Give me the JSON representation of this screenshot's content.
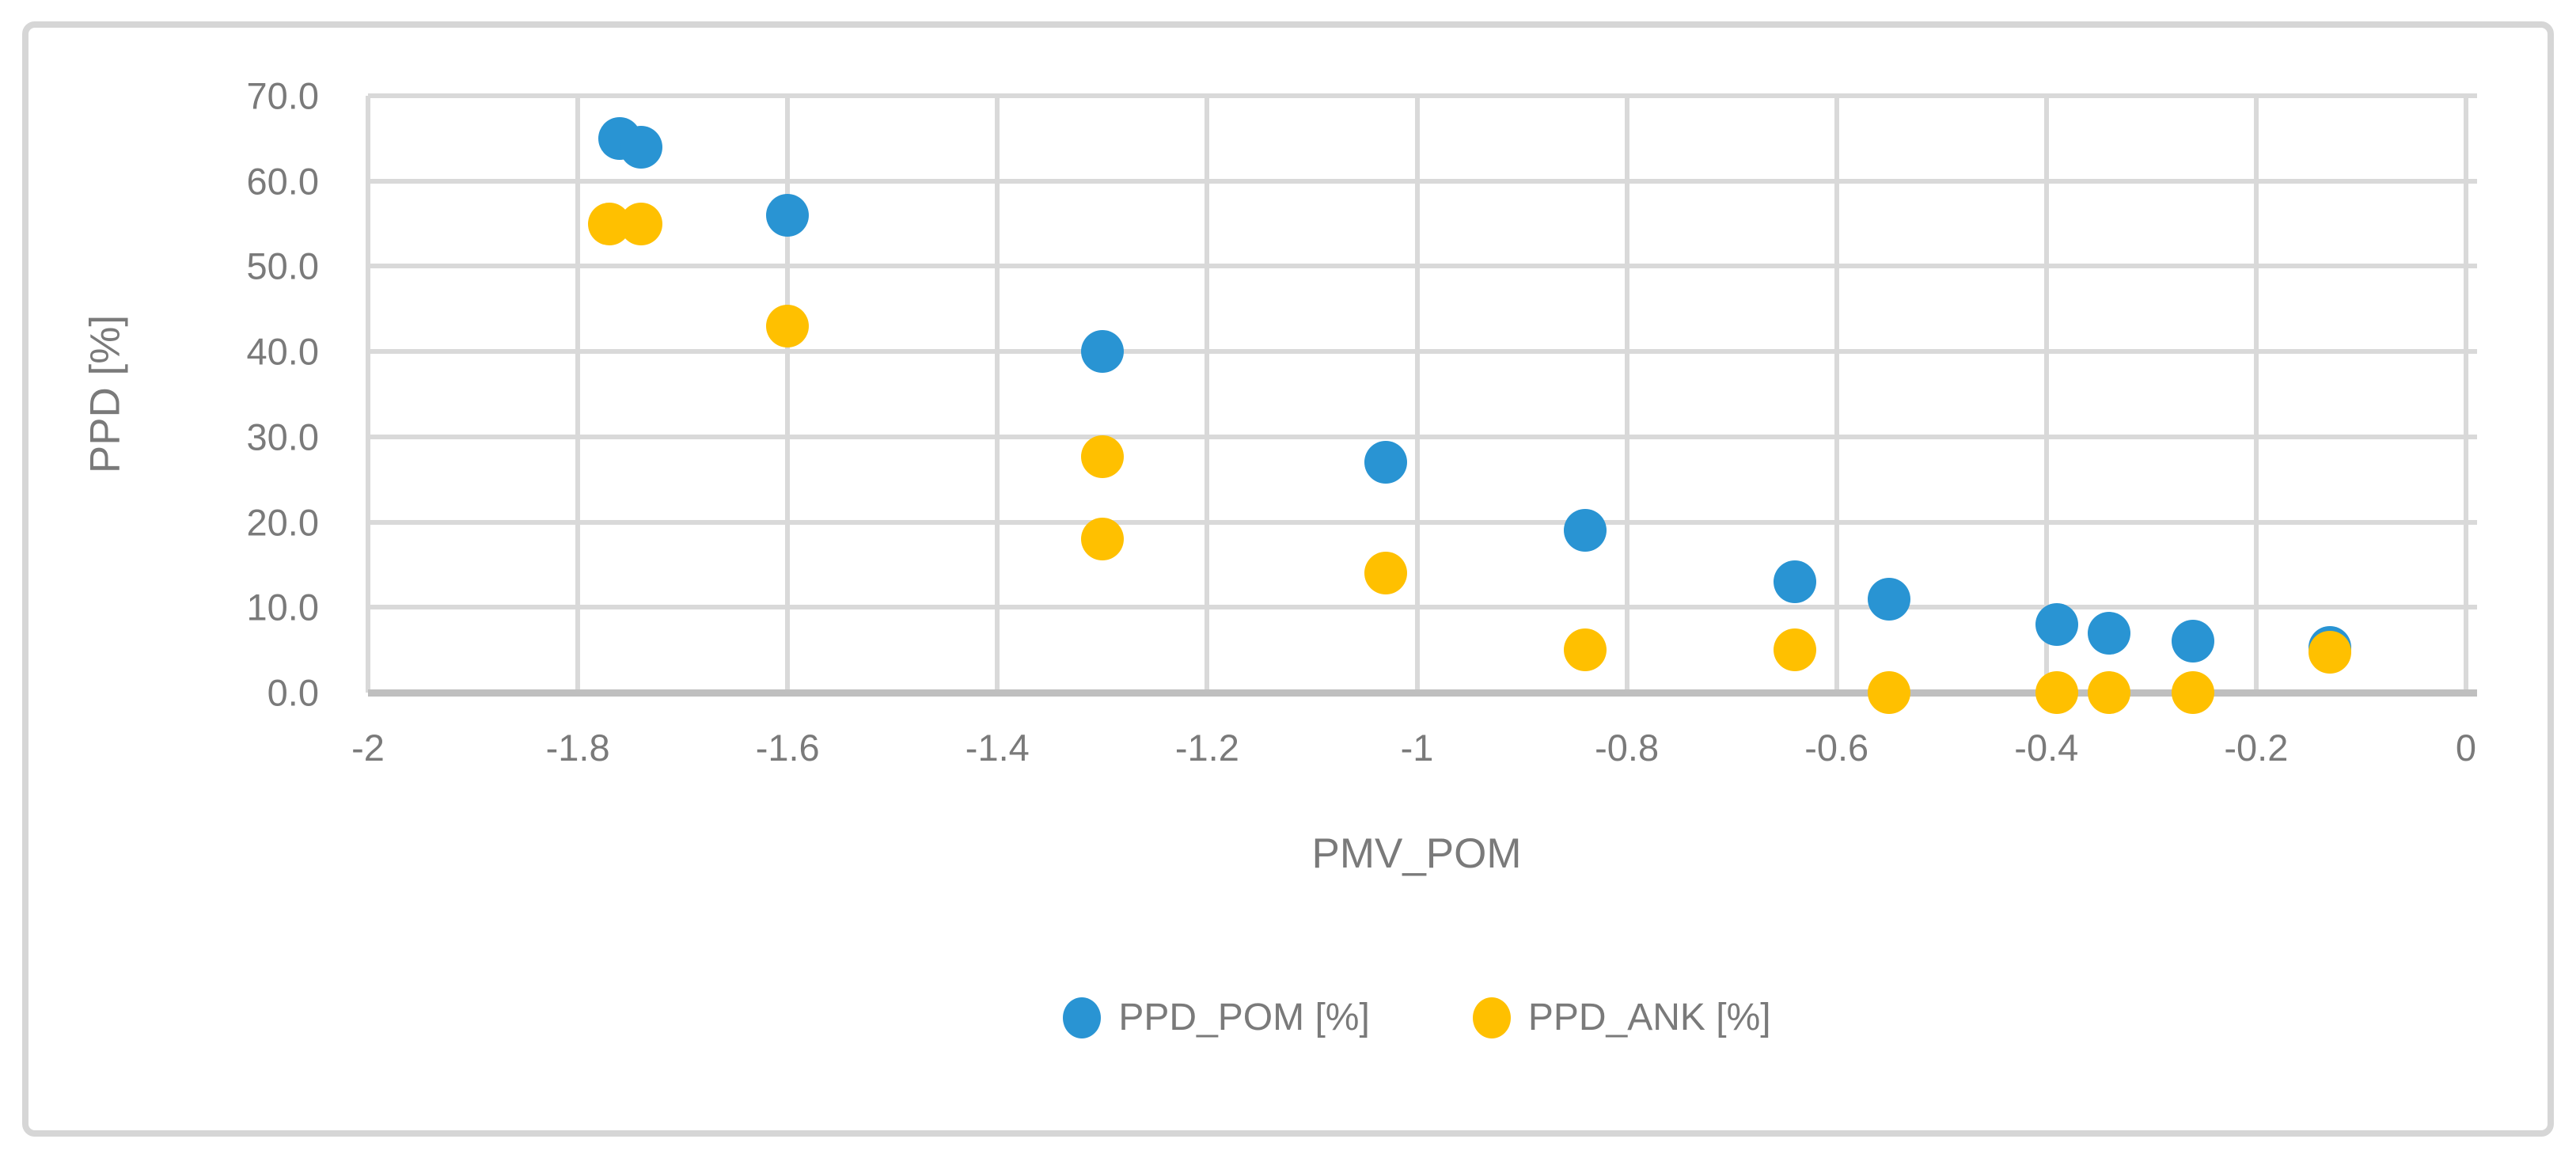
{
  "chart_data": {
    "type": "scatter",
    "title": "",
    "xlabel": "PMV_POM",
    "ylabel": "PPD [%]",
    "xlim": [
      -2,
      0
    ],
    "ylim": [
      0,
      70
    ],
    "grid": true,
    "legend_position": "bottom-center",
    "x_ticks": [
      -2,
      -1.8,
      -1.6,
      -1.4,
      -1.2,
      -1,
      -0.8,
      -0.6,
      -0.4,
      -0.2,
      0
    ],
    "x_tick_labels": [
      "-2",
      "-1.8",
      "-1.6",
      "-1.4",
      "-1.2",
      "-1",
      "-0.8",
      "-0.6",
      "-0.4",
      "-0.2",
      "0"
    ],
    "y_ticks": [
      0,
      10,
      20,
      30,
      40,
      50,
      60,
      70
    ],
    "y_tick_labels": [
      "0.0",
      "10.0",
      "20.0",
      "30.0",
      "40.0",
      "50.0",
      "60.0",
      "70.0"
    ],
    "series": [
      {
        "name": "PPD_POM [%]",
        "color": "#2994d3",
        "points": [
          [
            -1.76,
            65.0
          ],
          [
            -1.74,
            64.0
          ],
          [
            -1.6,
            56.0
          ],
          [
            -1.3,
            40.0
          ],
          [
            -1.03,
            27.0
          ],
          [
            -0.84,
            19.0
          ],
          [
            -0.64,
            13.0
          ],
          [
            -0.55,
            11.0
          ],
          [
            -0.39,
            8.0
          ],
          [
            -0.34,
            7.0
          ],
          [
            -0.26,
            6.0
          ],
          [
            -0.13,
            5.3
          ]
        ]
      },
      {
        "name": "PPD_ANK [%]",
        "color": "#ffc000",
        "points": [
          [
            -1.77,
            55.0
          ],
          [
            -1.74,
            55.0
          ],
          [
            -1.6,
            43.0
          ],
          [
            -1.3,
            27.7
          ],
          [
            -1.3,
            18.0
          ],
          [
            -1.03,
            14.0
          ],
          [
            -0.84,
            5.0
          ],
          [
            -0.64,
            5.0
          ],
          [
            -0.55,
            0.0
          ],
          [
            -0.39,
            0.0
          ],
          [
            -0.34,
            0.0
          ],
          [
            -0.26,
            0.0
          ],
          [
            -0.13,
            4.7
          ]
        ]
      }
    ],
    "colors": {
      "gridline": "#d9d9d9",
      "axis_line": "#bfbfbf",
      "tick_text": "#7a7a7a",
      "frame_border": "#d6d6d6"
    }
  }
}
